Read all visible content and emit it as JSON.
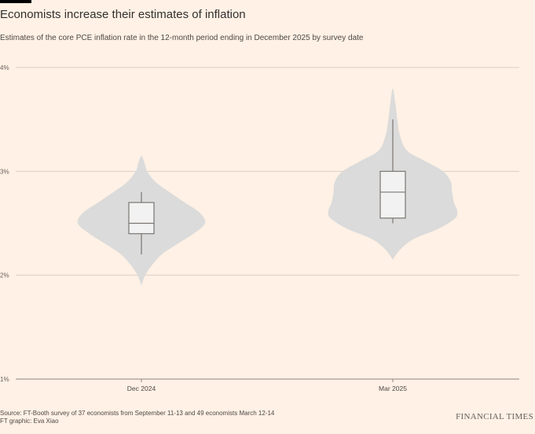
{
  "header": {
    "title": "Economists increase their estimates of inflation",
    "subtitle": "Estimates of the core PCE inflation rate in the 12-month period ending in December 2025 by survey date"
  },
  "chart_data": {
    "type": "violin",
    "ylim": [
      1,
      4
    ],
    "yticks": [
      "1%",
      "2%",
      "3%",
      "4%"
    ],
    "ytick_values": [
      1,
      2,
      3,
      4
    ],
    "grid": true,
    "colors": {
      "violin": "#dbdbdb",
      "box": "#f2f2f2",
      "line": "#7a7672",
      "grid": "#d9cfc6"
    },
    "series": [
      {
        "category": "Dec 2024",
        "box": {
          "whisker_low": 2.2,
          "q1": 2.4,
          "median": 2.5,
          "q3": 2.7,
          "whisker_high": 2.8
        },
        "violin_range": [
          1.9,
          3.15
        ]
      },
      {
        "category": "Mar 2025",
        "box": {
          "whisker_low": 2.5,
          "q1": 2.55,
          "median": 2.8,
          "q3": 3.0,
          "whisker_high": 3.5
        },
        "violin_range": [
          2.15,
          3.8
        ]
      }
    ]
  },
  "footer": {
    "source": "Source: FT-Booth survey of 37 economists from September 11-13 and 49 economists March 12-14",
    "credit": "FT graphic: Eva Xiao",
    "brand": "FINANCIAL TIMES"
  }
}
